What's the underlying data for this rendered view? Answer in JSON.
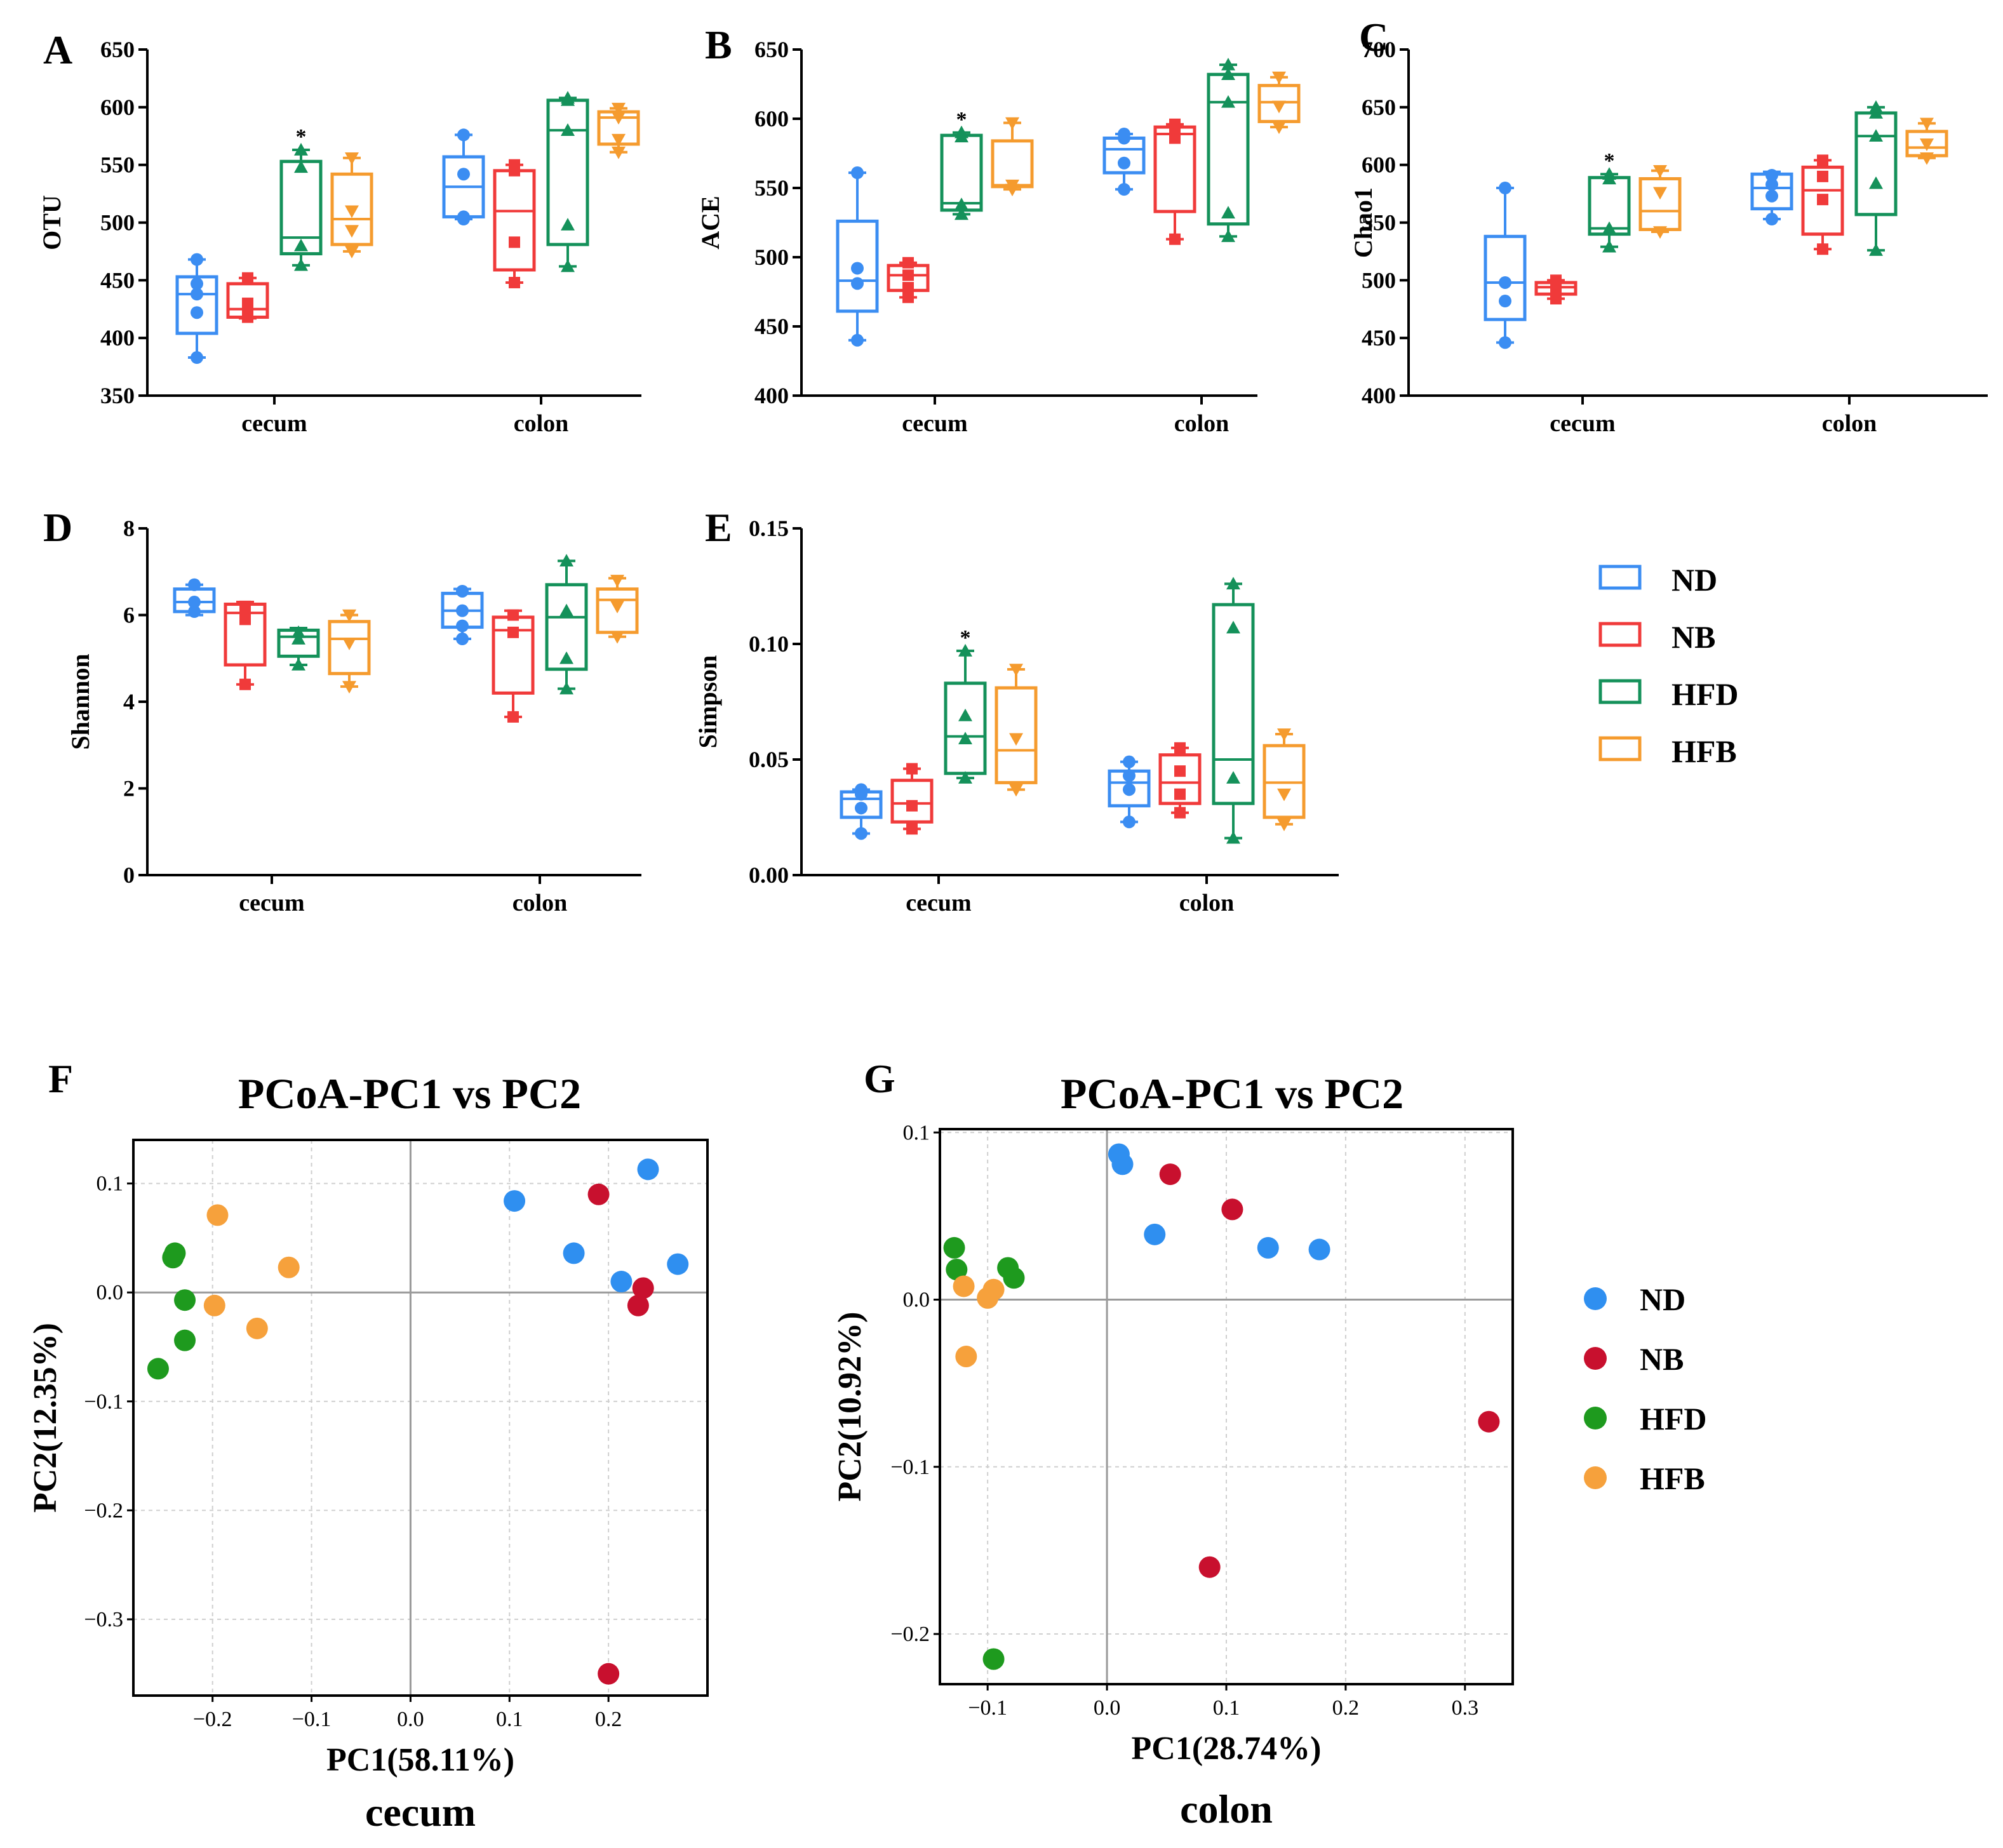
{
  "figure": {
    "boxplot_legend": [
      "ND",
      "NB",
      "HFD",
      "HFB"
    ],
    "pcoa_legend": [
      "ND",
      "NB",
      "HFD",
      "HFB"
    ],
    "colors": {
      "box": [
        "#3b8df2",
        "#f03a3a",
        "#14915a",
        "#f59b2e"
      ],
      "dot": [
        "#2f8ff0",
        "#c8102e",
        "#1e9a1e",
        "#f6a13c"
      ]
    }
  },
  "chart_data": [
    {
      "type": "box",
      "panel": "A",
      "ylabel": "OTU",
      "ylim": [
        350,
        650
      ],
      "yticks": [
        "350",
        "400",
        "450",
        "500",
        "550",
        "600",
        "650"
      ],
      "categories": [
        "cecum",
        "colon"
      ],
      "significance_marker": "*",
      "groups": [
        {
          "category": "cecum",
          "series": "ND",
          "min": 383,
          "q1": 404,
          "median": 438,
          "q3": 453,
          "max": 468,
          "points": [
            383,
            422,
            438,
            447,
            468
          ],
          "marker": "circle"
        },
        {
          "category": "cecum",
          "series": "NB",
          "min": 417,
          "q1": 418,
          "median": 425,
          "q3": 447,
          "max": 452,
          "points": [
            418,
            420,
            430,
            452
          ],
          "marker": "square"
        },
        {
          "category": "cecum",
          "series": "HFD",
          "min": 463,
          "q1": 473,
          "median": 487,
          "q3": 553,
          "max": 563,
          "points": [
            463,
            480,
            548,
            563
          ],
          "marker": "triangle",
          "star": true
        },
        {
          "category": "cecum",
          "series": "HFB",
          "min": 475,
          "q1": 481,
          "median": 503,
          "q3": 542,
          "max": 556,
          "points": [
            475,
            493,
            510,
            556
          ],
          "marker": "triangle-down"
        },
        {
          "category": "colon",
          "series": "ND",
          "min": 503,
          "q1": 505,
          "median": 531,
          "q3": 557,
          "max": 576,
          "points": [
            505,
            542,
            576,
            503
          ],
          "marker": "circle"
        },
        {
          "category": "colon",
          "series": "NB",
          "min": 448,
          "q1": 459,
          "median": 510,
          "q3": 545,
          "max": 550,
          "points": [
            448,
            483,
            545,
            550
          ],
          "marker": "square"
        },
        {
          "category": "colon",
          "series": "HFD",
          "min": 462,
          "q1": 481,
          "median": 580,
          "q3": 606,
          "max": 608,
          "points": [
            462,
            498,
            580,
            606,
            608
          ],
          "marker": "triangle"
        },
        {
          "category": "colon",
          "series": "HFB",
          "min": 561,
          "q1": 568,
          "median": 591,
          "q3": 596,
          "max": 599,
          "points": [
            561,
            572,
            591,
            599
          ],
          "marker": "triangle-down"
        }
      ]
    },
    {
      "type": "box",
      "panel": "B",
      "ylabel": "ACE",
      "ylim": [
        400,
        650
      ],
      "yticks": [
        "400",
        "450",
        "500",
        "550",
        "600",
        "650"
      ],
      "categories": [
        "cecum",
        "colon"
      ],
      "significance_marker": "*",
      "groups": [
        {
          "category": "cecum",
          "series": "ND",
          "min": 440,
          "q1": 461,
          "median": 483,
          "q3": 526,
          "max": 561,
          "points": [
            440,
            481,
            492,
            561
          ],
          "marker": "circle"
        },
        {
          "category": "cecum",
          "series": "NB",
          "min": 471,
          "q1": 476,
          "median": 487,
          "q3": 494,
          "max": 496,
          "points": [
            471,
            478,
            487,
            496
          ],
          "marker": "square"
        },
        {
          "category": "cecum",
          "series": "HFD",
          "min": 531,
          "q1": 534,
          "median": 539,
          "q3": 588,
          "max": 590,
          "points": [
            531,
            538,
            587,
            590
          ],
          "marker": "triangle",
          "star": true
        },
        {
          "category": "cecum",
          "series": "HFB",
          "min": 549,
          "q1": 551,
          "median": 552,
          "q3": 584,
          "max": 597,
          "points": [
            549,
            552,
            597
          ],
          "marker": "triangle-down"
        },
        {
          "category": "colon",
          "series": "ND",
          "min": 549,
          "q1": 561,
          "median": 578,
          "q3": 586,
          "max": 589,
          "points": [
            549,
            568,
            586,
            589
          ],
          "marker": "circle"
        },
        {
          "category": "colon",
          "series": "NB",
          "min": 513,
          "q1": 533,
          "median": 589,
          "q3": 594,
          "max": 596,
          "points": [
            513,
            586,
            593,
            596
          ],
          "marker": "square"
        },
        {
          "category": "colon",
          "series": "HFD",
          "min": 515,
          "q1": 524,
          "median": 612,
          "q3": 632,
          "max": 639,
          "points": [
            515,
            532,
            612,
            632,
            639
          ],
          "marker": "triangle"
        },
        {
          "category": "colon",
          "series": "HFB",
          "min": 594,
          "q1": 598,
          "median": 612,
          "q3": 624,
          "max": 630,
          "points": [
            594,
            609,
            630
          ],
          "marker": "triangle-down"
        }
      ]
    },
    {
      "type": "box",
      "panel": "C",
      "ylabel": "Chao1",
      "ylim": [
        400,
        700
      ],
      "yticks": [
        "400",
        "450",
        "500",
        "550",
        "600",
        "650",
        "700"
      ],
      "categories": [
        "cecum",
        "colon"
      ],
      "significance_marker": "*",
      "groups": [
        {
          "category": "cecum",
          "series": "ND",
          "min": 446,
          "q1": 466,
          "median": 498,
          "q3": 538,
          "max": 580,
          "points": [
            446,
            482,
            498,
            580
          ],
          "marker": "circle"
        },
        {
          "category": "cecum",
          "series": "NB",
          "min": 484,
          "q1": 488,
          "median": 494,
          "q3": 498,
          "max": 500,
          "points": [
            484,
            492,
            500
          ],
          "marker": "square"
        },
        {
          "category": "cecum",
          "series": "HFD",
          "min": 529,
          "q1": 540,
          "median": 545,
          "q3": 589,
          "max": 592,
          "points": [
            529,
            545,
            588,
            592
          ],
          "marker": "triangle",
          "star": true
        },
        {
          "category": "cecum",
          "series": "HFB",
          "min": 542,
          "q1": 544,
          "median": 560,
          "q3": 588,
          "max": 595,
          "points": [
            542,
            576,
            595
          ],
          "marker": "triangle-down"
        },
        {
          "category": "colon",
          "series": "ND",
          "min": 553,
          "q1": 562,
          "median": 580,
          "q3": 592,
          "max": 594,
          "points": [
            553,
            573,
            583,
            591
          ],
          "marker": "circle"
        },
        {
          "category": "colon",
          "series": "NB",
          "min": 527,
          "q1": 540,
          "median": 578,
          "q3": 598,
          "max": 604,
          "points": [
            527,
            570,
            590,
            604
          ],
          "marker": "square"
        },
        {
          "category": "colon",
          "series": "HFD",
          "min": 526,
          "q1": 557,
          "median": 625,
          "q3": 645,
          "max": 650,
          "points": [
            526,
            584,
            625,
            645,
            650
          ],
          "marker": "triangle"
        },
        {
          "category": "colon",
          "series": "HFB",
          "min": 606,
          "q1": 608,
          "median": 615,
          "q3": 629,
          "max": 636,
          "points": [
            606,
            618,
            636
          ],
          "marker": "triangle-down"
        }
      ]
    },
    {
      "type": "box",
      "panel": "D",
      "ylabel": "Shannon",
      "ylim": [
        0,
        8
      ],
      "yticks": [
        "0",
        "2",
        "4",
        "6",
        "8"
      ],
      "categories": [
        "cecum",
        "colon"
      ],
      "groups": [
        {
          "category": "cecum",
          "series": "ND",
          "min": 6.0,
          "q1": 6.08,
          "median": 6.3,
          "q3": 6.6,
          "max": 6.7,
          "points": [
            6.08,
            6.3,
            6.7
          ],
          "marker": "circle"
        },
        {
          "category": "cecum",
          "series": "NB",
          "min": 4.4,
          "q1": 4.85,
          "median": 6.05,
          "q3": 6.25,
          "max": 6.3,
          "points": [
            4.4,
            5.9,
            6.2
          ],
          "marker": "square"
        },
        {
          "category": "cecum",
          "series": "HFD",
          "min": 4.85,
          "q1": 5.05,
          "median": 5.5,
          "q3": 5.65,
          "max": 5.7,
          "points": [
            4.85,
            5.45,
            5.6
          ],
          "marker": "triangle"
        },
        {
          "category": "cecum",
          "series": "HFB",
          "min": 4.35,
          "q1": 4.65,
          "median": 5.45,
          "q3": 5.85,
          "max": 6.0,
          "points": [
            4.35,
            5.35,
            6.0
          ],
          "marker": "triangle-down"
        },
        {
          "category": "colon",
          "series": "ND",
          "min": 5.45,
          "q1": 5.72,
          "median": 6.1,
          "q3": 6.5,
          "max": 6.6,
          "points": [
            5.45,
            5.75,
            6.1,
            6.55
          ],
          "marker": "circle"
        },
        {
          "category": "colon",
          "series": "NB",
          "min": 3.65,
          "q1": 4.2,
          "median": 5.65,
          "q3": 5.95,
          "max": 6.1,
          "points": [
            3.65,
            5.6,
            6.0
          ],
          "marker": "square"
        },
        {
          "category": "colon",
          "series": "HFD",
          "min": 4.3,
          "q1": 4.75,
          "median": 5.95,
          "q3": 6.7,
          "max": 7.25,
          "points": [
            4.3,
            5.0,
            6.1,
            7.25
          ],
          "marker": "triangle"
        },
        {
          "category": "colon",
          "series": "HFB",
          "min": 5.5,
          "q1": 5.6,
          "median": 6.35,
          "q3": 6.6,
          "max": 6.85,
          "points": [
            5.5,
            6.2,
            6.8
          ],
          "marker": "triangle-down"
        }
      ]
    },
    {
      "type": "box",
      "panel": "E",
      "ylabel": "Simpson",
      "ylim": [
        0,
        0.15
      ],
      "yticks": [
        "0.00",
        "0.05",
        "0.10",
        "0.15"
      ],
      "categories": [
        "cecum",
        "colon"
      ],
      "significance_marker": "*",
      "groups": [
        {
          "category": "cecum",
          "series": "ND",
          "min": 0.018,
          "q1": 0.025,
          "median": 0.033,
          "q3": 0.036,
          "max": 0.037,
          "points": [
            0.018,
            0.029,
            0.035,
            0.037
          ],
          "marker": "circle"
        },
        {
          "category": "cecum",
          "series": "NB",
          "min": 0.02,
          "q1": 0.023,
          "median": 0.031,
          "q3": 0.041,
          "max": 0.046,
          "points": [
            0.02,
            0.03,
            0.046
          ],
          "marker": "square"
        },
        {
          "category": "cecum",
          "series": "HFD",
          "min": 0.042,
          "q1": 0.044,
          "median": 0.06,
          "q3": 0.083,
          "max": 0.097,
          "points": [
            0.042,
            0.059,
            0.069,
            0.097
          ],
          "marker": "triangle",
          "star": true
        },
        {
          "category": "cecum",
          "series": "HFB",
          "min": 0.037,
          "q1": 0.04,
          "median": 0.054,
          "q3": 0.081,
          "max": 0.089,
          "points": [
            0.037,
            0.059,
            0.089
          ],
          "marker": "triangle-down"
        },
        {
          "category": "colon",
          "series": "ND",
          "min": 0.023,
          "q1": 0.03,
          "median": 0.04,
          "q3": 0.045,
          "max": 0.049,
          "points": [
            0.023,
            0.037,
            0.043,
            0.049
          ],
          "marker": "circle"
        },
        {
          "category": "colon",
          "series": "NB",
          "min": 0.027,
          "q1": 0.031,
          "median": 0.04,
          "q3": 0.052,
          "max": 0.055,
          "points": [
            0.027,
            0.035,
            0.045,
            0.055
          ],
          "marker": "square"
        },
        {
          "category": "colon",
          "series": "HFD",
          "min": 0.016,
          "q1": 0.031,
          "median": 0.05,
          "q3": 0.117,
          "max": 0.126,
          "points": [
            0.016,
            0.042,
            0.107,
            0.126
          ],
          "marker": "triangle"
        },
        {
          "category": "colon",
          "series": "HFB",
          "min": 0.022,
          "q1": 0.025,
          "median": 0.04,
          "q3": 0.056,
          "max": 0.061,
          "points": [
            0.022,
            0.035,
            0.061
          ],
          "marker": "triangle-down"
        }
      ]
    },
    {
      "type": "scatter",
      "panel": "F",
      "title": "PCoA-PC1 vs PC2",
      "xlabel": "PC1(58.11%)",
      "ylabel": "PC2(12.35%)",
      "subtitle": "cecum",
      "xlim": [
        -0.28,
        0.3
      ],
      "ylim": [
        -0.37,
        0.14
      ],
      "xticks": [
        -0.2,
        -0.1,
        0.0,
        0.1,
        0.2
      ],
      "yticks": [
        -0.3,
        -0.2,
        -0.1,
        0.0,
        0.1
      ],
      "xtick_labels": [
        "−0.2",
        "−0.1",
        "0.0",
        "0.1",
        "0.2"
      ],
      "ytick_labels": [
        "−0.3",
        "−0.2",
        "−0.1",
        "0.0",
        "0.1"
      ],
      "series": [
        {
          "name": "ND",
          "points": [
            [
              0.105,
              0.084
            ],
            [
              0.165,
              0.036
            ],
            [
              0.213,
              0.01
            ],
            [
              0.24,
              0.113
            ],
            [
              0.27,
              0.026
            ]
          ]
        },
        {
          "name": "NB",
          "points": [
            [
              0.19,
              0.09
            ],
            [
              0.23,
              -0.012
            ],
            [
              0.235,
              0.004
            ],
            [
              0.2,
              -0.35
            ]
          ]
        },
        {
          "name": "HFD",
          "points": [
            [
              -0.24,
              0.032
            ],
            [
              -0.238,
              0.036
            ],
            [
              -0.228,
              -0.007
            ],
            [
              -0.228,
              -0.044
            ],
            [
              -0.255,
              -0.07
            ]
          ]
        },
        {
          "name": "HFB",
          "points": [
            [
              -0.195,
              0.071
            ],
            [
              -0.198,
              -0.012
            ],
            [
              -0.123,
              0.023
            ],
            [
              -0.155,
              -0.033
            ]
          ]
        }
      ]
    },
    {
      "type": "scatter",
      "panel": "G",
      "title": "PCoA-PC1 vs PC2",
      "xlabel": "PC1(28.74%)",
      "ylabel": "PC2(10.92%)",
      "subtitle": "colon",
      "xlim": [
        -0.14,
        0.34
      ],
      "ylim": [
        -0.23,
        0.102
      ],
      "xticks": [
        -0.1,
        0.0,
        0.1,
        0.2,
        0.3
      ],
      "yticks": [
        -0.2,
        -0.1,
        0.0,
        0.1
      ],
      "xtick_labels": [
        "−0.1",
        "0.0",
        "0.1",
        "0.2",
        "0.3"
      ],
      "ytick_labels": [
        "−0.2",
        "−0.1",
        "0.0",
        "0.1"
      ],
      "series": [
        {
          "name": "ND",
          "points": [
            [
              0.01,
              0.087
            ],
            [
              0.013,
              0.081
            ],
            [
              0.04,
              0.039
            ],
            [
              0.135,
              0.031
            ],
            [
              0.178,
              0.03
            ]
          ]
        },
        {
          "name": "NB",
          "points": [
            [
              0.053,
              0.075
            ],
            [
              0.105,
              0.054
            ],
            [
              0.32,
              -0.073
            ],
            [
              0.086,
              -0.16
            ]
          ]
        },
        {
          "name": "HFD",
          "points": [
            [
              -0.128,
              0.031
            ],
            [
              -0.126,
              0.018
            ],
            [
              -0.083,
              0.019
            ],
            [
              -0.078,
              0.013
            ],
            [
              -0.095,
              -0.215
            ]
          ]
        },
        {
          "name": "HFB",
          "points": [
            [
              -0.12,
              0.008
            ],
            [
              -0.1,
              0.001
            ],
            [
              -0.095,
              0.006
            ],
            [
              -0.118,
              -0.034
            ]
          ]
        }
      ]
    }
  ]
}
